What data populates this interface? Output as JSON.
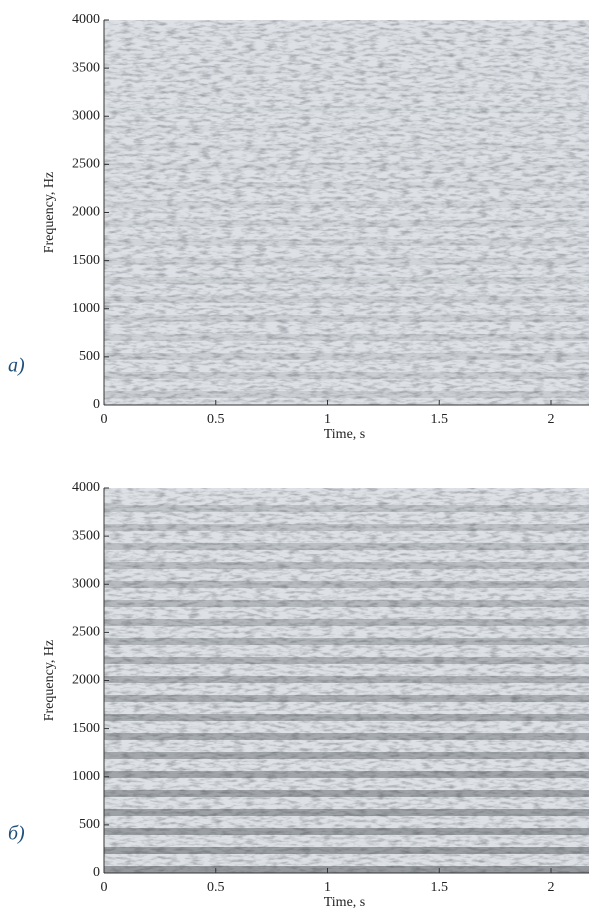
{
  "chart_data": [
    {
      "type": "spectrogram",
      "panel_label": "a)",
      "xlabel": "Time, s",
      "ylabel": "Frequency, Hz",
      "xlim": [
        0,
        2.17
      ],
      "ylim": [
        0,
        4000
      ],
      "xticks": [
        0,
        0.5,
        1,
        1.5,
        2
      ],
      "yticks": [
        0,
        500,
        1000,
        1500,
        2000,
        2500,
        3000,
        3500,
        4000
      ]
    },
    {
      "type": "spectrogram",
      "panel_label": "б)",
      "xlabel": "Time, s",
      "ylabel": "Frequency, Hz",
      "xlim": [
        0,
        2.17
      ],
      "ylim": [
        0,
        4000
      ],
      "xticks": [
        0,
        0.5,
        1,
        1.5,
        2
      ],
      "yticks": [
        0,
        500,
        1000,
        1500,
        2000,
        2500,
        3000,
        3500,
        4000
      ]
    }
  ]
}
